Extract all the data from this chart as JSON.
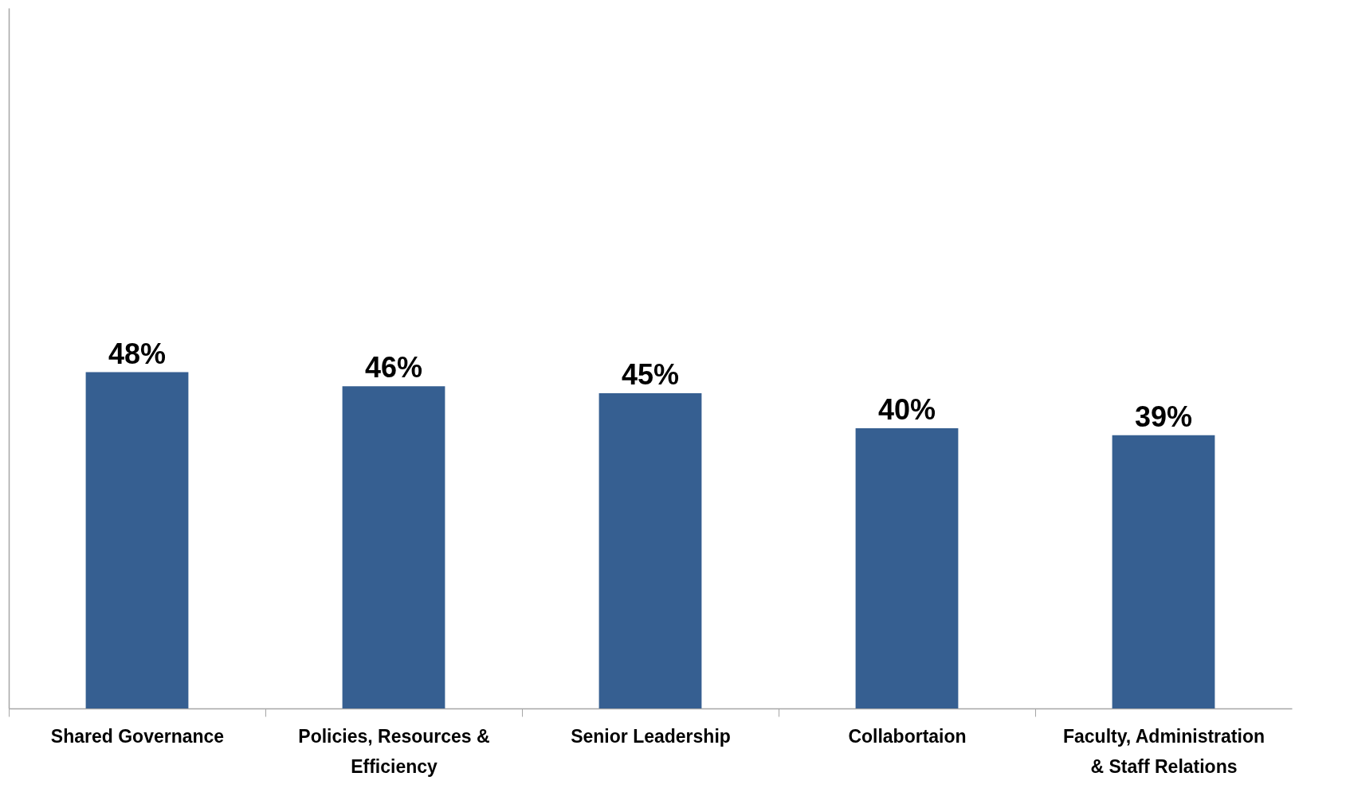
{
  "chart_data": {
    "type": "bar",
    "categories": [
      "Shared Governance",
      "Policies, Resources & Efficiency",
      "Senior Leadership",
      "Collabortaion",
      "Faculty, Administration & Staff Relations"
    ],
    "values": [
      48,
      46,
      45,
      40,
      39
    ],
    "value_labels": [
      "48%",
      "46%",
      "45%",
      "40%",
      "39%"
    ],
    "color": "#365f91",
    "ylim": [
      0,
      100
    ]
  }
}
